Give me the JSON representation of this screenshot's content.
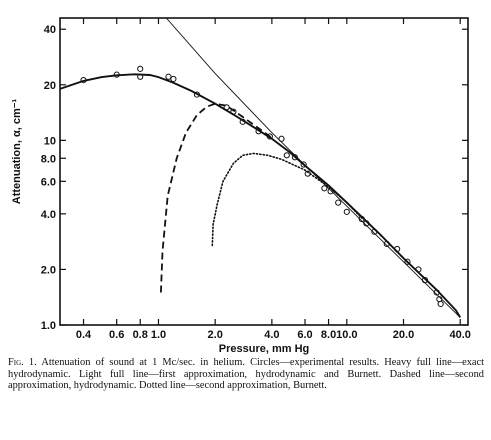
{
  "caption": {
    "label": "Fig. 1.",
    "text": "Attenuation of sound at 1 Mc/sec. in helium. Circles—experimental results. Heavy full line—exact hydrodynamic. Light full line—first approximation, hydrodynamic and Burnett. Dashed line—second approximation, hydrodynamic. Dotted line—second approximation, Burnett."
  },
  "chart_data": {
    "type": "line",
    "title": "",
    "xlabel": "Pressure, mm Hg",
    "ylabel": "Attenuation, α, cm⁻¹",
    "x_scale": "log",
    "y_scale": "log",
    "xlim": [
      0.3,
      44
    ],
    "ylim": [
      1.0,
      46
    ],
    "x_ticks": [
      0.4,
      0.6,
      0.8,
      1.0,
      2.0,
      4.0,
      6.0,
      8.0,
      10.0,
      20.0,
      40.0
    ],
    "x_tick_labels": [
      "0.4",
      "0.6",
      "0.8",
      "1.0",
      "2.0",
      "4.0",
      "6.0",
      "8.0",
      "10.0",
      "20.0",
      "40.0"
    ],
    "y_ticks": [
      1.0,
      2.0,
      4.0,
      6.0,
      8.0,
      10,
      20,
      40
    ],
    "y_tick_labels": [
      "1.0",
      "2.0",
      "4.0",
      "6.0",
      "8.0",
      "10",
      "20",
      "40"
    ],
    "grid": false,
    "series": [
      {
        "style": "circles",
        "points": [
          [
            0.4,
            21.2
          ],
          [
            0.6,
            22.7
          ],
          [
            0.8,
            24.4
          ],
          [
            0.8,
            22.1
          ],
          [
            1.13,
            22.1
          ],
          [
            1.2,
            21.5
          ],
          [
            1.6,
            17.7
          ],
          [
            2.3,
            15.1
          ],
          [
            2.5,
            14.3
          ],
          [
            2.8,
            12.6
          ],
          [
            3.4,
            11.2
          ],
          [
            3.9,
            10.5
          ],
          [
            4.5,
            10.2
          ],
          [
            4.8,
            8.3
          ],
          [
            5.3,
            8.1
          ],
          [
            5.9,
            7.4
          ],
          [
            6.2,
            6.6
          ],
          [
            7.6,
            5.5
          ],
          [
            8.2,
            5.3
          ],
          [
            9.0,
            4.6
          ],
          [
            10.0,
            4.1
          ],
          [
            12.0,
            3.75
          ],
          [
            12.7,
            3.55
          ],
          [
            14.0,
            3.2
          ],
          [
            16.3,
            2.75
          ],
          [
            18.5,
            2.58
          ],
          [
            21.0,
            2.2
          ],
          [
            24.0,
            2.0
          ],
          [
            26.0,
            1.75
          ],
          [
            30.0,
            1.5
          ],
          [
            31.0,
            1.38
          ],
          [
            31.5,
            1.3
          ]
        ]
      },
      {
        "style": "heavy-solid",
        "points": [
          [
            0.3,
            19.0
          ],
          [
            0.4,
            21.0
          ],
          [
            0.5,
            22.0
          ],
          [
            0.6,
            22.5
          ],
          [
            0.75,
            22.8
          ],
          [
            0.9,
            22.6
          ],
          [
            1.0,
            22.0
          ],
          [
            1.2,
            20.5
          ],
          [
            1.5,
            18.5
          ],
          [
            2.0,
            15.8
          ],
          [
            2.5,
            13.8
          ],
          [
            3.0,
            12.3
          ],
          [
            4.0,
            10.2
          ],
          [
            5.0,
            8.6
          ],
          [
            6.0,
            7.3
          ],
          [
            8.0,
            5.7
          ],
          [
            10.0,
            4.6
          ],
          [
            15.0,
            3.1
          ],
          [
            20.0,
            2.3
          ],
          [
            30.0,
            1.55
          ],
          [
            38.0,
            1.2
          ],
          [
            40.0,
            1.1
          ]
        ]
      },
      {
        "style": "light-solid",
        "points": [
          [
            1.1,
            46.0
          ],
          [
            2.0,
            23.0
          ],
          [
            4.0,
            11.0
          ],
          [
            10.0,
            4.4
          ],
          [
            20.0,
            2.2
          ],
          [
            40.0,
            1.1
          ]
        ]
      },
      {
        "style": "dashed",
        "points": [
          [
            1.03,
            1.5
          ],
          [
            1.05,
            2.5
          ],
          [
            1.12,
            5.0
          ],
          [
            1.25,
            8.0
          ],
          [
            1.4,
            11.0
          ],
          [
            1.6,
            13.7
          ],
          [
            1.8,
            15.2
          ],
          [
            2.0,
            15.8
          ],
          [
            2.3,
            15.4
          ],
          [
            2.8,
            13.4
          ],
          [
            3.5,
            11.4
          ],
          [
            4.0,
            10.3
          ]
        ]
      },
      {
        "style": "dotted",
        "points": [
          [
            1.93,
            2.7
          ],
          [
            1.95,
            3.5
          ],
          [
            2.05,
            4.5
          ],
          [
            2.2,
            6.0
          ],
          [
            2.5,
            7.5
          ],
          [
            2.8,
            8.3
          ],
          [
            3.2,
            8.5
          ],
          [
            3.8,
            8.3
          ],
          [
            4.5,
            7.9
          ],
          [
            6.0,
            6.9
          ],
          [
            8.0,
            5.6
          ],
          [
            10.0,
            4.6
          ],
          [
            12.0,
            3.8
          ]
        ]
      }
    ]
  }
}
